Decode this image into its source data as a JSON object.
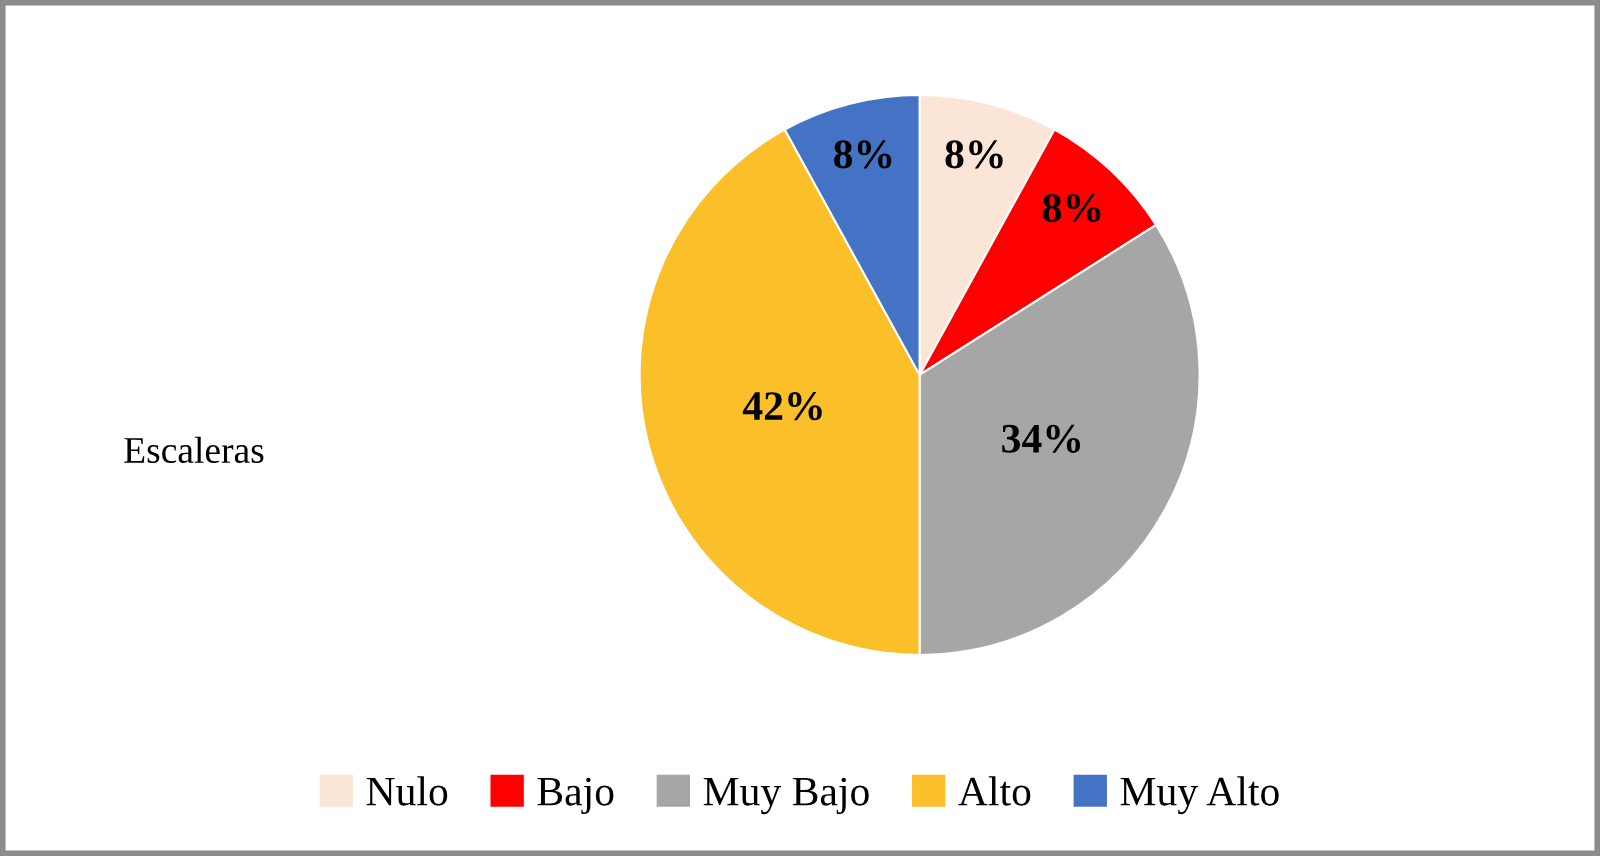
{
  "chart_data": {
    "type": "pie",
    "title": "Escaleras",
    "categories": [
      "Nulo",
      "Bajo",
      "Muy Bajo",
      "Alto",
      "Muy Alto"
    ],
    "values": [
      8,
      8,
      34,
      42,
      8
    ],
    "colors": [
      "#fbe5d6",
      "#ff0000",
      "#a6a6a6",
      "#fbbf2a",
      "#4472c4"
    ],
    "value_labels": [
      "8%",
      "8%",
      "34%",
      "42%",
      "8%"
    ],
    "legend": "bottom"
  }
}
